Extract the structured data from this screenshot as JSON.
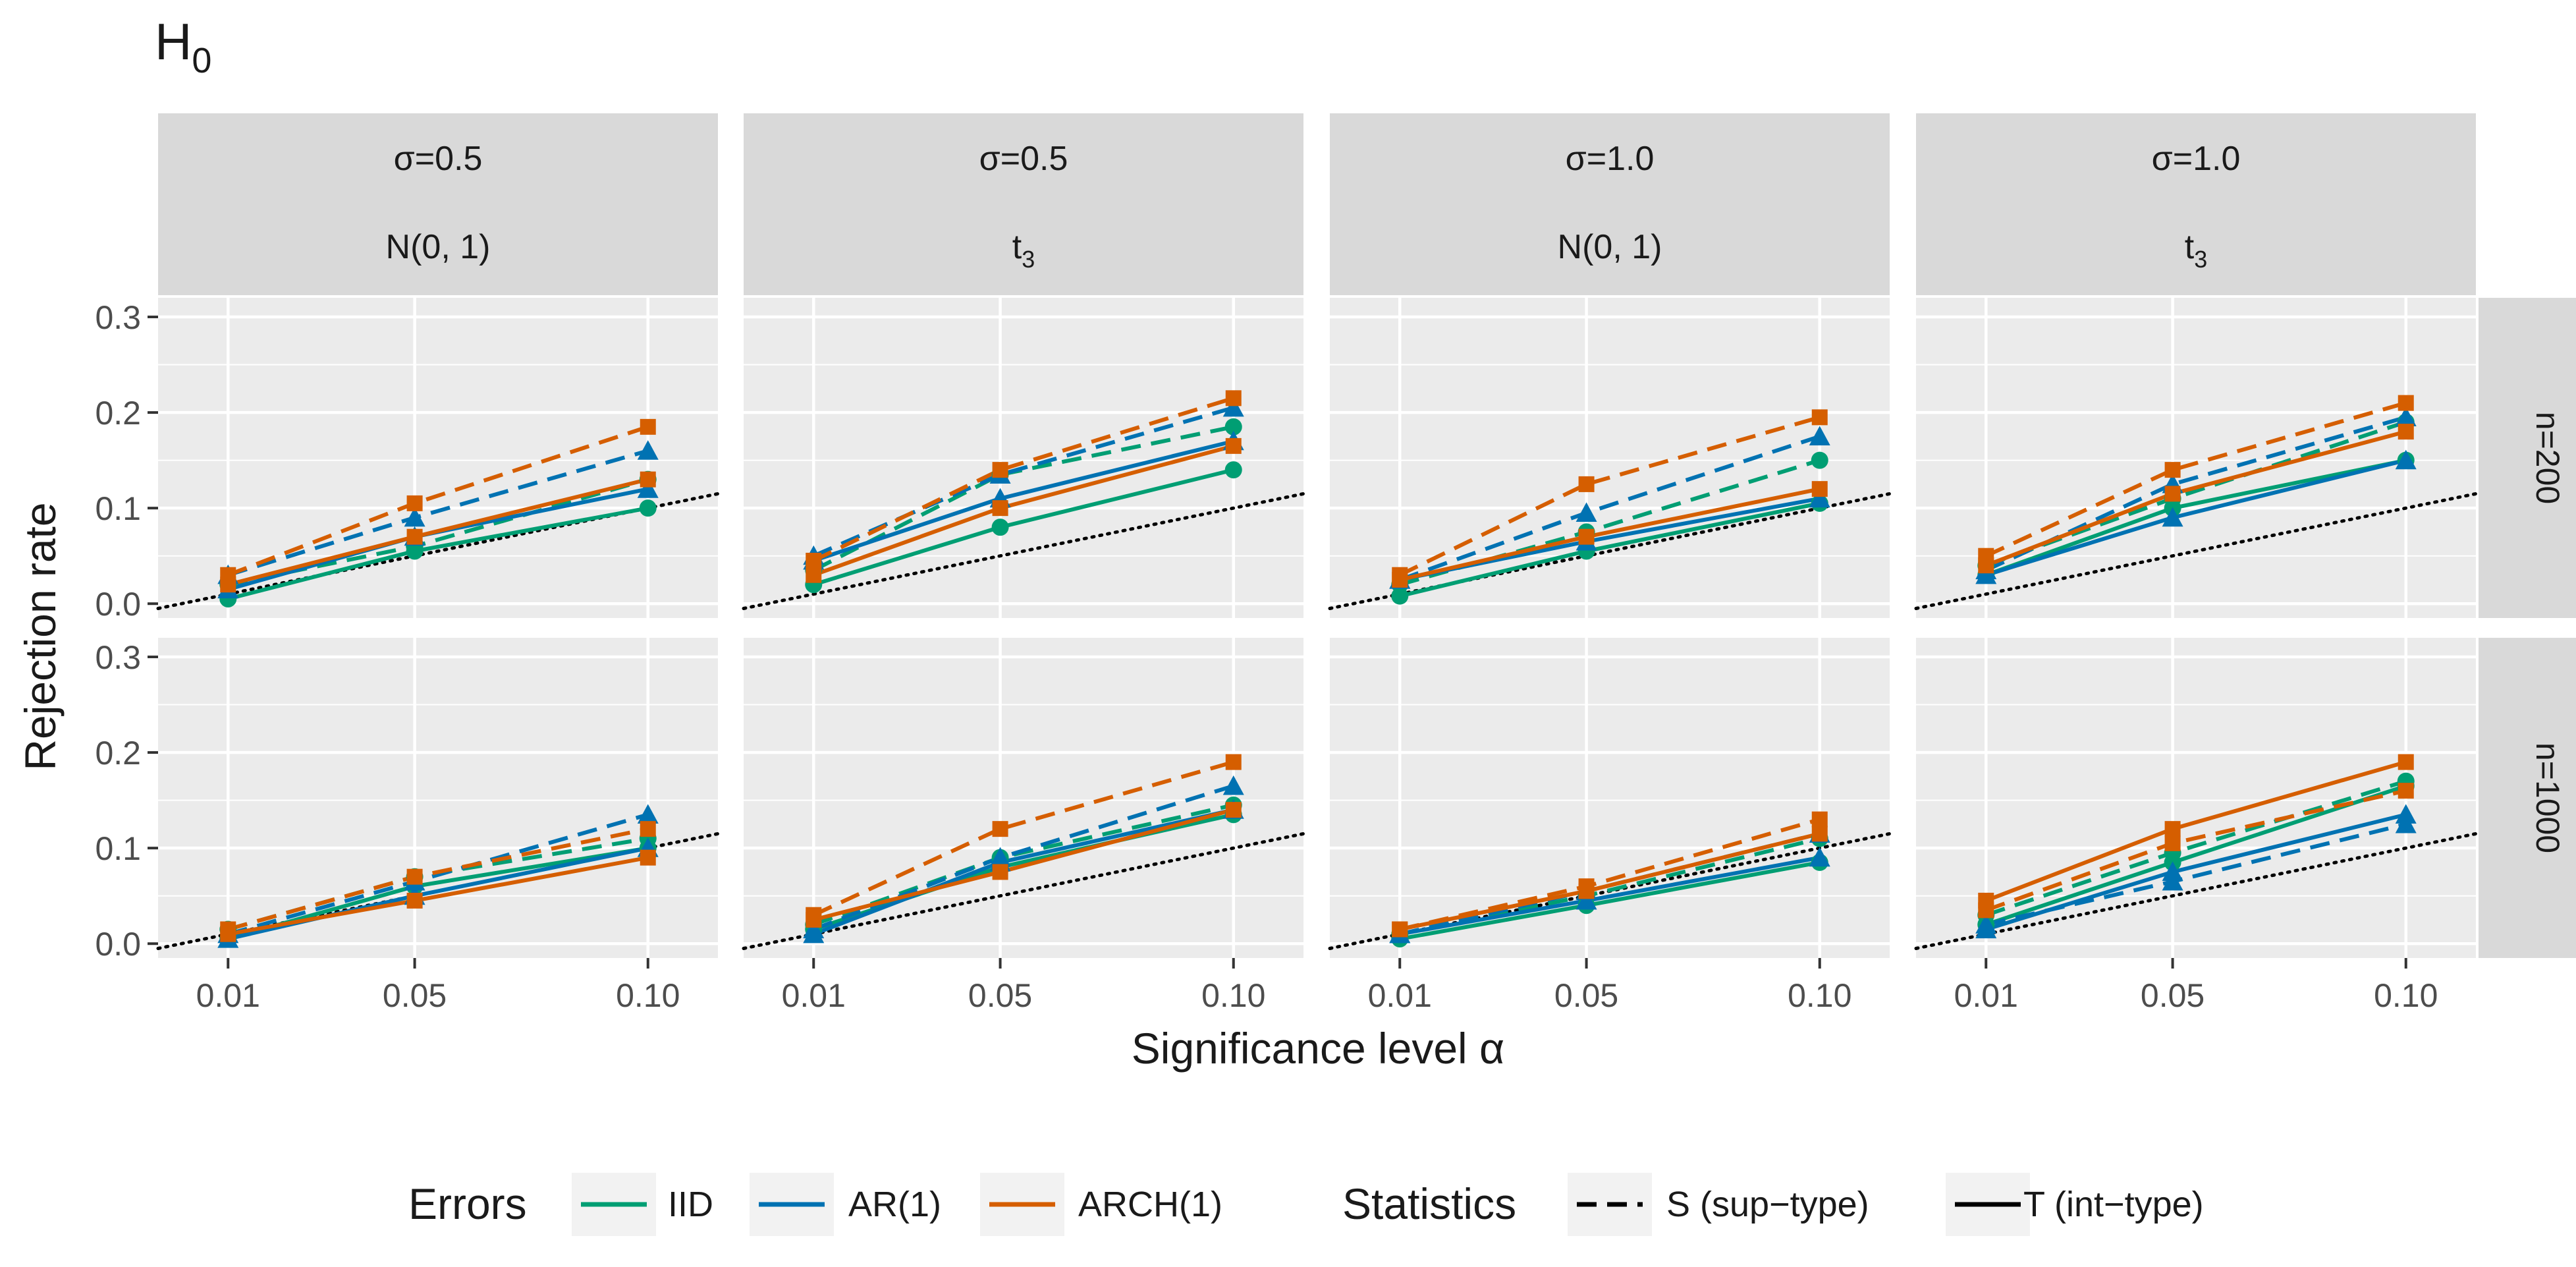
{
  "colors": {
    "IID": "#009E73",
    "AR(1)": "#0072B2",
    "ARCH(1)": "#D55E00",
    "panel_bg": "#EBEBEB",
    "strip_bg": "#D9D9D9",
    "grid": "#FFFFFF",
    "text": "#1A1A1A",
    "axis_text": "#4D4D4D"
  },
  "chart_data": {
    "type": "line",
    "title": "H",
    "title_subscript": "0",
    "xlabel": "Significance level α",
    "ylabel": "Rejection rate",
    "x": [
      0.01,
      0.05,
      0.1
    ],
    "xtick_labels": [
      "0.01",
      "0.05",
      "0.10"
    ],
    "xlim": [
      -0.005,
      0.115
    ],
    "ylim": [
      -0.015,
      0.32
    ],
    "yticks": [
      0.0,
      0.1,
      0.2,
      0.3
    ],
    "ytick_labels": [
      "0.0",
      "0.1",
      "0.2",
      "0.3"
    ],
    "reference_line": {
      "label": "y = α",
      "style": "dotted"
    },
    "columns": [
      {
        "sigma": "σ=0.5",
        "dist": "N(0, 1)",
        "dist_sub": ""
      },
      {
        "sigma": "σ=0.5",
        "dist": "t",
        "dist_sub": "3"
      },
      {
        "sigma": "σ=1.0",
        "dist": "N(0, 1)",
        "dist_sub": ""
      },
      {
        "sigma": "σ=1.0",
        "dist": "t",
        "dist_sub": "3"
      }
    ],
    "rows": [
      "n=200",
      "n=1000"
    ],
    "legend": {
      "errors_title": "Errors",
      "errors": [
        "IID",
        "AR(1)",
        "ARCH(1)"
      ],
      "statistics_title": "Statistics",
      "statistics": [
        {
          "key": "S",
          "label": "S (sup−type)",
          "dash": "dashed"
        },
        {
          "key": "T",
          "label": "T (int−type)",
          "dash": "solid"
        }
      ]
    },
    "panels": [
      {
        "row": 0,
        "col": 0,
        "series": [
          {
            "error": "IID",
            "stat": "S",
            "values": [
              0.02,
              0.06,
              0.13
            ]
          },
          {
            "error": "IID",
            "stat": "T",
            "values": [
              0.005,
              0.055,
              0.1
            ]
          },
          {
            "error": "AR(1)",
            "stat": "S",
            "values": [
              0.03,
              0.09,
              0.16
            ]
          },
          {
            "error": "AR(1)",
            "stat": "T",
            "values": [
              0.015,
              0.07,
              0.12
            ]
          },
          {
            "error": "ARCH(1)",
            "stat": "S",
            "values": [
              0.03,
              0.105,
              0.185
            ]
          },
          {
            "error": "ARCH(1)",
            "stat": "T",
            "values": [
              0.02,
              0.07,
              0.13
            ]
          }
        ]
      },
      {
        "row": 0,
        "col": 1,
        "series": [
          {
            "error": "IID",
            "stat": "S",
            "values": [
              0.035,
              0.135,
              0.185
            ]
          },
          {
            "error": "IID",
            "stat": "T",
            "values": [
              0.02,
              0.08,
              0.14
            ]
          },
          {
            "error": "AR(1)",
            "stat": "S",
            "values": [
              0.05,
              0.135,
              0.205
            ]
          },
          {
            "error": "AR(1)",
            "stat": "T",
            "values": [
              0.045,
              0.11,
              0.17
            ]
          },
          {
            "error": "ARCH(1)",
            "stat": "S",
            "values": [
              0.045,
              0.14,
              0.215
            ]
          },
          {
            "error": "ARCH(1)",
            "stat": "T",
            "values": [
              0.03,
              0.1,
              0.165
            ]
          }
        ]
      },
      {
        "row": 0,
        "col": 2,
        "series": [
          {
            "error": "IID",
            "stat": "S",
            "values": [
              0.02,
              0.075,
              0.15
            ]
          },
          {
            "error": "IID",
            "stat": "T",
            "values": [
              0.008,
              0.055,
              0.105
            ]
          },
          {
            "error": "AR(1)",
            "stat": "S",
            "values": [
              0.025,
              0.095,
              0.175
            ]
          },
          {
            "error": "AR(1)",
            "stat": "T",
            "values": [
              0.025,
              0.065,
              0.11
            ]
          },
          {
            "error": "ARCH(1)",
            "stat": "S",
            "values": [
              0.03,
              0.125,
              0.195
            ]
          },
          {
            "error": "ARCH(1)",
            "stat": "T",
            "values": [
              0.025,
              0.07,
              0.12
            ]
          }
        ]
      },
      {
        "row": 0,
        "col": 3,
        "series": [
          {
            "error": "IID",
            "stat": "S",
            "values": [
              0.04,
              0.11,
              0.19
            ]
          },
          {
            "error": "IID",
            "stat": "T",
            "values": [
              0.03,
              0.1,
              0.15
            ]
          },
          {
            "error": "AR(1)",
            "stat": "S",
            "values": [
              0.035,
              0.125,
              0.195
            ]
          },
          {
            "error": "AR(1)",
            "stat": "T",
            "values": [
              0.03,
              0.09,
              0.15
            ]
          },
          {
            "error": "ARCH(1)",
            "stat": "S",
            "values": [
              0.05,
              0.14,
              0.21
            ]
          },
          {
            "error": "ARCH(1)",
            "stat": "T",
            "values": [
              0.04,
              0.115,
              0.18
            ]
          }
        ]
      },
      {
        "row": 1,
        "col": 0,
        "series": [
          {
            "error": "IID",
            "stat": "S",
            "values": [
              0.015,
              0.07,
              0.11
            ]
          },
          {
            "error": "IID",
            "stat": "T",
            "values": [
              0.005,
              0.06,
              0.1
            ]
          },
          {
            "error": "AR(1)",
            "stat": "S",
            "values": [
              0.01,
              0.065,
              0.135
            ]
          },
          {
            "error": "AR(1)",
            "stat": "T",
            "values": [
              0.005,
              0.05,
              0.1
            ]
          },
          {
            "error": "ARCH(1)",
            "stat": "S",
            "values": [
              0.015,
              0.07,
              0.12
            ]
          },
          {
            "error": "ARCH(1)",
            "stat": "T",
            "values": [
              0.01,
              0.045,
              0.09
            ]
          }
        ]
      },
      {
        "row": 1,
        "col": 1,
        "series": [
          {
            "error": "IID",
            "stat": "S",
            "values": [
              0.02,
              0.09,
              0.145
            ]
          },
          {
            "error": "IID",
            "stat": "T",
            "values": [
              0.015,
              0.08,
              0.135
            ]
          },
          {
            "error": "AR(1)",
            "stat": "S",
            "values": [
              0.015,
              0.09,
              0.165
            ]
          },
          {
            "error": "AR(1)",
            "stat": "T",
            "values": [
              0.01,
              0.085,
              0.14
            ]
          },
          {
            "error": "ARCH(1)",
            "stat": "S",
            "values": [
              0.03,
              0.12,
              0.19
            ]
          },
          {
            "error": "ARCH(1)",
            "stat": "T",
            "values": [
              0.025,
              0.075,
              0.14
            ]
          }
        ]
      },
      {
        "row": 1,
        "col": 2,
        "series": [
          {
            "error": "IID",
            "stat": "S",
            "values": [
              0.01,
              0.05,
              0.11
            ]
          },
          {
            "error": "IID",
            "stat": "T",
            "values": [
              0.005,
              0.04,
              0.085
            ]
          },
          {
            "error": "AR(1)",
            "stat": "S",
            "values": [
              0.01,
              0.055,
              0.115
            ]
          },
          {
            "error": "AR(1)",
            "stat": "T",
            "values": [
              0.01,
              0.045,
              0.09
            ]
          },
          {
            "error": "ARCH(1)",
            "stat": "S",
            "values": [
              0.015,
              0.06,
              0.13
            ]
          },
          {
            "error": "ARCH(1)",
            "stat": "T",
            "values": [
              0.015,
              0.055,
              0.115
            ]
          }
        ]
      },
      {
        "row": 1,
        "col": 3,
        "series": [
          {
            "error": "IID",
            "stat": "S",
            "values": [
              0.03,
              0.095,
              0.17
            ]
          },
          {
            "error": "IID",
            "stat": "T",
            "values": [
              0.02,
              0.085,
              0.165
            ]
          },
          {
            "error": "AR(1)",
            "stat": "S",
            "values": [
              0.02,
              0.065,
              0.125
            ]
          },
          {
            "error": "AR(1)",
            "stat": "T",
            "values": [
              0.015,
              0.075,
              0.135
            ]
          },
          {
            "error": "ARCH(1)",
            "stat": "S",
            "values": [
              0.035,
              0.105,
              0.16
            ]
          },
          {
            "error": "ARCH(1)",
            "stat": "T",
            "values": [
              0.045,
              0.12,
              0.19
            ]
          }
        ]
      }
    ]
  }
}
